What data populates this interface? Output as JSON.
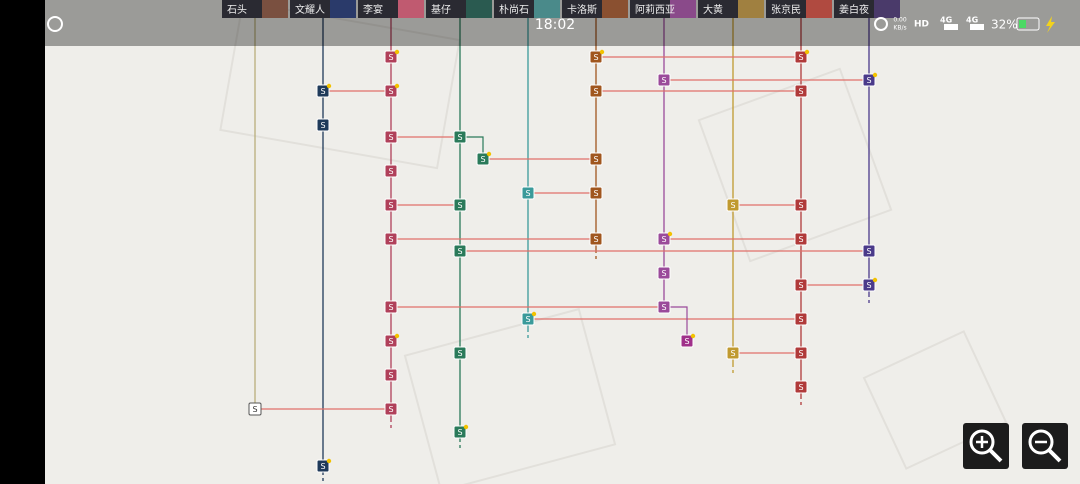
{
  "status_bar": {
    "time": "18:02",
    "network_speed": "0.00",
    "speed_unit": "KB/s",
    "hd": "HD",
    "sim1": "4G",
    "sim2": "4G",
    "battery": "32%"
  },
  "characters": [
    "石头",
    "文耀人",
    "李宴",
    "基仔",
    "朴尚石",
    "卡洛斯",
    "阿莉西亚",
    "大黄",
    "张京民",
    "姜白夜"
  ],
  "node_labels": [
    "S",
    "S",
    "S",
    "S",
    "S",
    "S",
    "S",
    "S",
    "S",
    "S",
    "S",
    "S",
    "S",
    "S",
    "S",
    "S",
    "S",
    "S",
    "S",
    "S",
    "S",
    "S",
    "S",
    "S",
    "S",
    "S",
    "S",
    "S",
    "S",
    "S",
    "S",
    "S",
    "S",
    "S",
    "S",
    "S",
    "S",
    "S",
    "S",
    "S",
    "S",
    "S",
    "S",
    "S",
    "S"
  ]
}
